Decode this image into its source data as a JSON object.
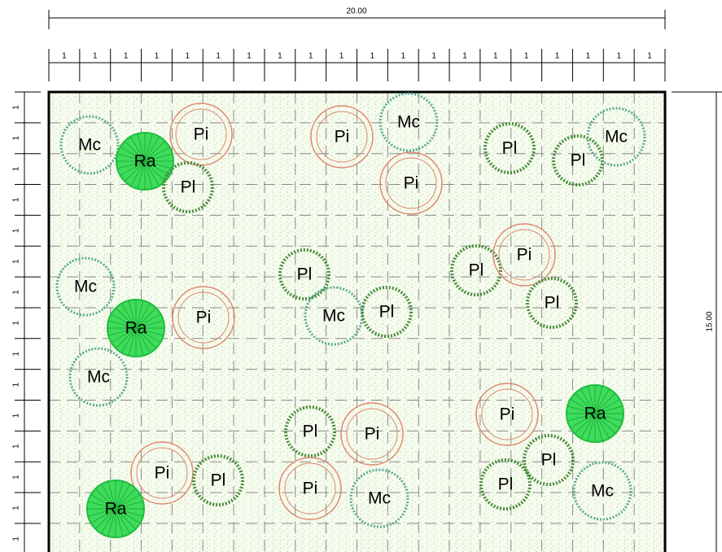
{
  "dimensions": {
    "width": "20.00",
    "height": "15.00",
    "top_units": [
      "1",
      "1",
      "1",
      "1",
      "1",
      "1",
      "1",
      "1",
      "1",
      "1",
      "1",
      "1",
      "1",
      "1",
      "1",
      "1",
      "1",
      "1",
      "1",
      "1"
    ],
    "left_units": [
      "1",
      "1",
      "1",
      "1",
      "1",
      "1",
      "1",
      "1",
      "1",
      "1",
      "1",
      "1",
      "1",
      "1",
      "1"
    ]
  },
  "plants": [
    {
      "label": "Mc"
    },
    {
      "label": "Ra"
    },
    {
      "label": "Pi"
    },
    {
      "label": "Pl"
    },
    {
      "label": "Pi"
    },
    {
      "label": "Mc"
    },
    {
      "label": "Pi"
    },
    {
      "label": "Pl"
    },
    {
      "label": "Pl"
    },
    {
      "label": "Mc"
    },
    {
      "label": "Mc"
    },
    {
      "label": "Ra"
    },
    {
      "label": "Pi"
    },
    {
      "label": "Pl"
    },
    {
      "label": "Mc"
    },
    {
      "label": "Pl"
    },
    {
      "label": "Pl"
    },
    {
      "label": "Pi"
    },
    {
      "label": "Pl"
    },
    {
      "label": "Mc"
    },
    {
      "label": "Pi"
    },
    {
      "label": "Ra"
    },
    {
      "label": "Pl"
    },
    {
      "label": "Pi"
    },
    {
      "label": "Pi"
    },
    {
      "label": "Pl"
    },
    {
      "label": "Pl"
    },
    {
      "label": "Pl"
    },
    {
      "label": "Pi"
    },
    {
      "label": "Mc"
    },
    {
      "label": "Mc"
    },
    {
      "label": "Ra"
    }
  ]
}
